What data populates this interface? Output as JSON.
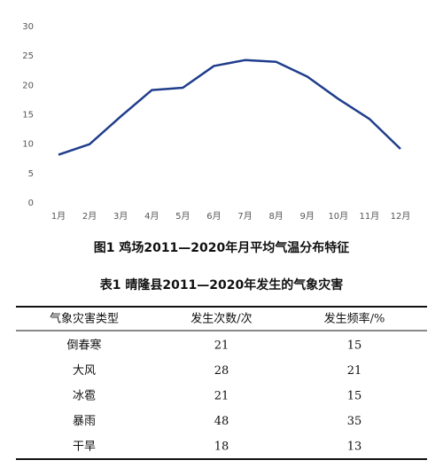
{
  "chart_data": {
    "type": "line",
    "categories": [
      "1月",
      "2月",
      "3月",
      "4月",
      "5月",
      "6月",
      "7月",
      "8月",
      "9月",
      "10月",
      "11月",
      "12月"
    ],
    "values": [
      8.2,
      10,
      14.7,
      19.2,
      19.6,
      23.3,
      24.3,
      24,
      21.5,
      17.7,
      14.3,
      9.2
    ],
    "color": "#1f3d8c",
    "ylim": [
      0,
      30
    ],
    "yticks": [
      0,
      5,
      10,
      15,
      20,
      25,
      30
    ],
    "grid": false
  },
  "figure_caption": "图1  鸡场2011—2020年月平均气温分布特征",
  "table": {
    "title": "表1  晴隆县2011—2020年发生的气象灾害",
    "header": [
      "气象灾害类型",
      "发生次数/次",
      "发生频率/%"
    ],
    "rows": [
      [
        "倒春寒",
        "21",
        "15"
      ],
      [
        "大风",
        "28",
        "21"
      ],
      [
        "冰雹",
        "21",
        "15"
      ],
      [
        "暴雨",
        "48",
        "35"
      ],
      [
        "干旱",
        "18",
        "13"
      ]
    ]
  }
}
